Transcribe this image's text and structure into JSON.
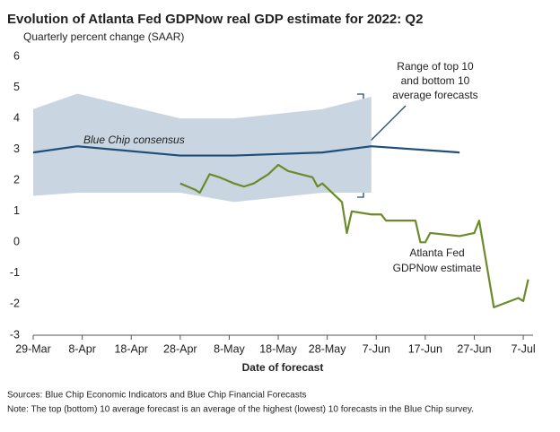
{
  "chart_data": {
    "type": "line",
    "title": "Evolution of Atlanta Fed GDPNow real GDP estimate for 2022: Q2",
    "subtitle": "Quarterly percent change (SAAR)",
    "x_label": "Date of forecast",
    "sources": "Sources: Blue Chip Economic Indicators and Blue Chip Financial Forecasts",
    "note": "Note: The top (bottom) 10 average forecast is an average of the highest (lowest) 10 forecasts in the Blue Chip survey.",
    "xlim": [
      "29-Mar",
      "9-Jul"
    ],
    "xticks": [
      "29-Mar",
      "8-Apr",
      "18-Apr",
      "28-Apr",
      "8-May",
      "18-May",
      "28-May",
      "7-Jun",
      "17-Jun",
      "27-Jun",
      "7-Jul"
    ],
    "ylim": [
      -3,
      6
    ],
    "yticks": [
      -3,
      -2,
      -1,
      0,
      1,
      2,
      3,
      4,
      5,
      6
    ],
    "band": {
      "label_lines": [
        "Range of top 10",
        "and bottom 10",
        "average forecasts"
      ],
      "color": "#c9d6e1",
      "x": [
        "29-Mar",
        "7-Apr",
        "28-Apr",
        "9-May",
        "27-May",
        "6-Jun"
      ],
      "upper": [
        4.3,
        4.8,
        4.0,
        4.0,
        4.3,
        4.7
      ],
      "lower": [
        1.5,
        1.6,
        1.6,
        1.3,
        1.6,
        1.6
      ]
    },
    "series": [
      {
        "name": "Blue Chip consensus",
        "color": "#1f4e79",
        "x": [
          "29-Mar",
          "7-Apr",
          "28-Apr",
          "9-May",
          "27-May",
          "6-Jun",
          "24-Jun"
        ],
        "values": [
          2.9,
          3.1,
          2.8,
          2.8,
          2.9,
          3.1,
          2.9
        ]
      },
      {
        "label_lines": [
          "Atlanta Fed",
          "GDPNow estimate"
        ],
        "color": "#6b8b2b",
        "x": [
          "28-Apr",
          "1-May",
          "2-May",
          "4-May",
          "6-May",
          "9-May",
          "11-May",
          "13-May",
          "16-May",
          "18-May",
          "20-May",
          "25-May",
          "26-May",
          "27-May",
          "31-May",
          "1-Jun",
          "2-Jun",
          "6-Jun",
          "8-Jun",
          "9-Jun",
          "15-Jun",
          "16-Jun",
          "17-Jun",
          "18-Jun",
          "24-Jun",
          "27-Jun",
          "28-Jun",
          "1-Jul",
          "6-Jul",
          "7-Jul",
          "8-Jul"
        ],
        "values": [
          1.9,
          1.7,
          1.6,
          2.2,
          2.1,
          1.9,
          1.8,
          1.9,
          2.2,
          2.5,
          2.3,
          2.1,
          1.8,
          1.9,
          1.3,
          0.3,
          1.0,
          0.9,
          0.9,
          0.7,
          0.7,
          0.0,
          0.0,
          0.3,
          0.2,
          0.3,
          0.7,
          -2.1,
          -1.8,
          -1.9,
          -1.2
        ]
      }
    ]
  }
}
